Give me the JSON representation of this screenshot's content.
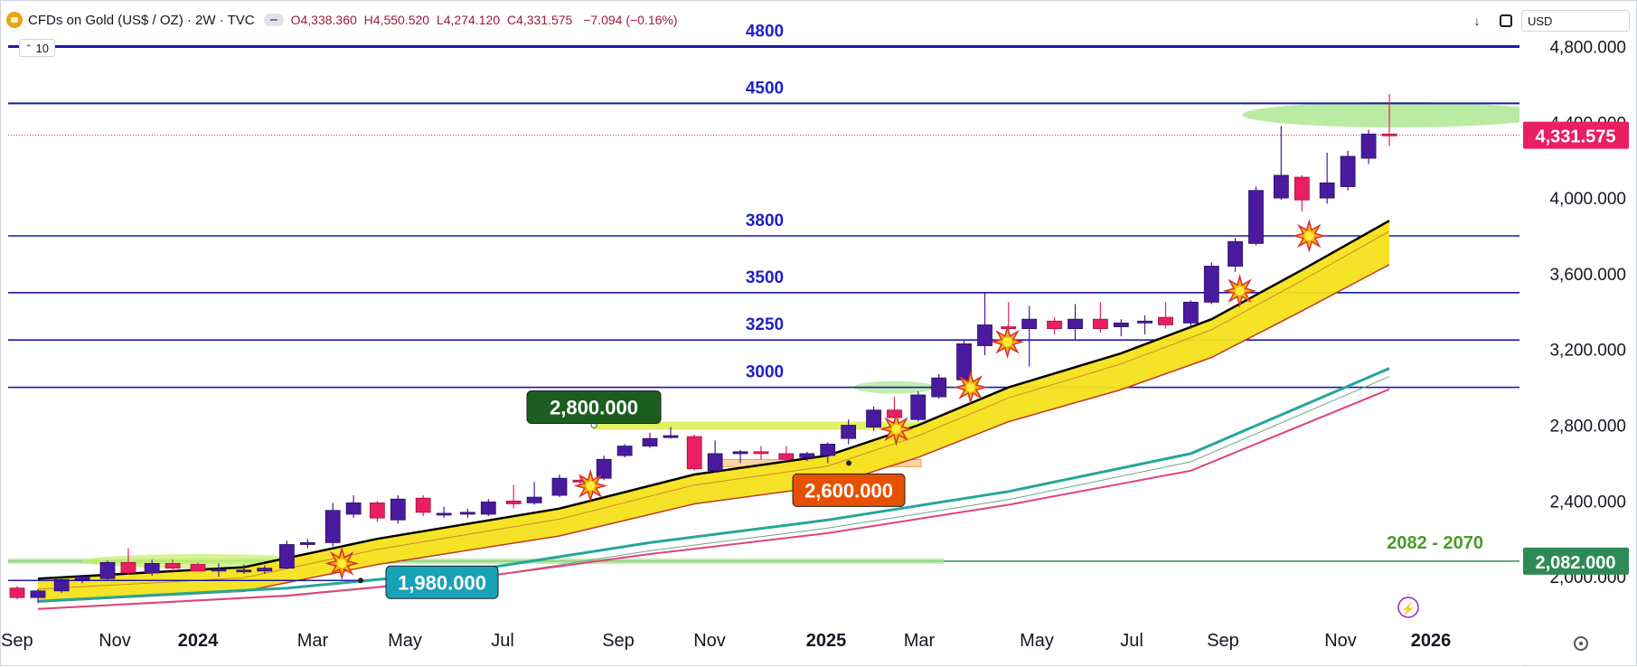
{
  "header": {
    "symbol_title": "CFDs on Gold (US$ / OZ) · 2W · TVC",
    "open": "O4,338.360",
    "high": "H4,550.520",
    "low": "L4,274.120",
    "close": "C4,331.575",
    "change": "−7.094 (−0.16%)",
    "indicator_count": "10",
    "currency": "USD"
  },
  "colors": {
    "bull_candle": "#4a1a9e",
    "bear_candle": "#e91e63",
    "level_line": "#1a1aa8",
    "level_text": "#2020c8",
    "price_tag": "#e91e63",
    "green_tag": "#2e8b57",
    "sma_band": "#f5e21b",
    "ma_teal": "#26a69a",
    "ma_pink": "#e0437b"
  },
  "chart_data": {
    "type": "candlestick",
    "title": "CFDs on Gold (US$ / OZ) · 2W · TVC",
    "x_axis_labels": [
      "Sep",
      "Nov",
      "2024",
      "Mar",
      "May",
      "Jul",
      "Sep",
      "Nov",
      "2025",
      "Mar",
      "May",
      "Jul",
      "Sep",
      "Nov",
      "2026"
    ],
    "y_axis_ticks": [
      "4,800.000",
      "4,400.000",
      "4,000.000",
      "3,600.000",
      "3,200.000",
      "2,800.000",
      "2,400.000",
      "2,000.000"
    ],
    "ylim": [
      1850,
      5220
    ],
    "last_price": "4,331.575",
    "horizontal_levels": [
      {
        "value": 4800,
        "label": "4800"
      },
      {
        "value": 4500,
        "label": "4500"
      },
      {
        "value": 3800,
        "label": "3800"
      },
      {
        "value": 3500,
        "label": "3500"
      },
      {
        "value": 3250,
        "label": "3250"
      },
      {
        "value": 3000,
        "label": "3000"
      }
    ],
    "zone_label": "2082 - 2070",
    "zone_tag": "2,082.000",
    "zone_value": 2082,
    "annotation_labels": [
      {
        "text": "2,800.000",
        "value": 2800,
        "date": "2024-08-16"
      },
      {
        "text": "2,600.000",
        "value": 2600,
        "date": "2025-01-05"
      },
      {
        "text": "1,980.000",
        "value": 1980,
        "date": "2024-04-20"
      }
    ],
    "candles": [
      {
        "date": "2023-09-01",
        "open": 1940,
        "high": 1950,
        "low": 1880,
        "close": 1890
      },
      {
        "date": "2023-09-15",
        "open": 1890,
        "high": 1935,
        "low": 1860,
        "close": 1925
      },
      {
        "date": "2023-10-01",
        "open": 1925,
        "high": 1995,
        "low": 1915,
        "close": 1985
      },
      {
        "date": "2023-10-15",
        "open": 1985,
        "high": 2010,
        "low": 1965,
        "close": 2000
      },
      {
        "date": "2023-11-01",
        "open": 1990,
        "high": 2085,
        "low": 1980,
        "close": 2075
      },
      {
        "date": "2023-11-15",
        "open": 2075,
        "high": 2150,
        "low": 2010,
        "close": 2020
      },
      {
        "date": "2023-12-01",
        "open": 2020,
        "high": 2090,
        "low": 2005,
        "close": 2070
      },
      {
        "date": "2023-12-15",
        "open": 2070,
        "high": 2090,
        "low": 2030,
        "close": 2045
      },
      {
        "date": "2024-01-01",
        "open": 2065,
        "high": 2075,
        "low": 2035,
        "close": 2030
      },
      {
        "date": "2024-01-15",
        "open": 2030,
        "high": 2070,
        "low": 2000,
        "close": 2040
      },
      {
        "date": "2024-02-01",
        "open": 2030,
        "high": 2065,
        "low": 2015,
        "close": 2035
      },
      {
        "date": "2024-02-15",
        "open": 2030,
        "high": 2060,
        "low": 2015,
        "close": 2045
      },
      {
        "date": "2024-03-01",
        "open": 2045,
        "high": 2190,
        "low": 2040,
        "close": 2170
      },
      {
        "date": "2024-03-15",
        "open": 2170,
        "high": 2200,
        "low": 2150,
        "close": 2180
      },
      {
        "date": "2024-04-01",
        "open": 2180,
        "high": 2390,
        "low": 2160,
        "close": 2350
      },
      {
        "date": "2024-04-15",
        "open": 2330,
        "high": 2430,
        "low": 2310,
        "close": 2390
      },
      {
        "date": "2024-05-01",
        "open": 2390,
        "high": 2400,
        "low": 2290,
        "close": 2310
      },
      {
        "date": "2024-05-15",
        "open": 2300,
        "high": 2430,
        "low": 2280,
        "close": 2410
      },
      {
        "date": "2024-06-01",
        "open": 2415,
        "high": 2430,
        "low": 2320,
        "close": 2340
      },
      {
        "date": "2024-06-15",
        "open": 2330,
        "high": 2370,
        "low": 2310,
        "close": 2335
      },
      {
        "date": "2024-07-01",
        "open": 2330,
        "high": 2360,
        "low": 2310,
        "close": 2340
      },
      {
        "date": "2024-07-15",
        "open": 2330,
        "high": 2410,
        "low": 2320,
        "close": 2395
      },
      {
        "date": "2024-08-01",
        "open": 2400,
        "high": 2485,
        "low": 2360,
        "close": 2385
      },
      {
        "date": "2024-08-15",
        "open": 2390,
        "high": 2500,
        "low": 2380,
        "close": 2420
      },
      {
        "date": "2024-09-01",
        "open": 2430,
        "high": 2540,
        "low": 2420,
        "close": 2520
      },
      {
        "date": "2024-09-15",
        "open": 2510,
        "high": 2530,
        "low": 2490,
        "close": 2500
      },
      {
        "date": "2024-10-01",
        "open": 2520,
        "high": 2640,
        "low": 2510,
        "close": 2620
      },
      {
        "date": "2024-10-15",
        "open": 2640,
        "high": 2700,
        "low": 2630,
        "close": 2690
      },
      {
        "date": "2024-11-01",
        "open": 2690,
        "high": 2760,
        "low": 2680,
        "close": 2730
      },
      {
        "date": "2024-11-15",
        "open": 2735,
        "high": 2790,
        "low": 2730,
        "close": 2745
      },
      {
        "date": "2024-12-01",
        "open": 2740,
        "high": 2750,
        "low": 2560,
        "close": 2570
      },
      {
        "date": "2024-12-15",
        "open": 2560,
        "high": 2720,
        "low": 2550,
        "close": 2650
      },
      {
        "date": "2025-01-01",
        "open": 2650,
        "high": 2670,
        "low": 2600,
        "close": 2660
      },
      {
        "date": "2025-01-15",
        "open": 2660,
        "high": 2690,
        "low": 2620,
        "close": 2650
      },
      {
        "date": "2025-02-01",
        "open": 2650,
        "high": 2690,
        "low": 2610,
        "close": 2620
      },
      {
        "date": "2025-02-15",
        "open": 2630,
        "high": 2660,
        "low": 2610,
        "close": 2650
      },
      {
        "date": "2025-03-01",
        "open": 2640,
        "high": 2710,
        "low": 2600,
        "close": 2700
      },
      {
        "date": "2025-03-15",
        "open": 2730,
        "high": 2830,
        "low": 2700,
        "close": 2800
      },
      {
        "date": "2025-04-01",
        "open": 2790,
        "high": 2900,
        "low": 2770,
        "close": 2880
      },
      {
        "date": "2025-04-15",
        "open": 2880,
        "high": 2950,
        "low": 2840,
        "close": 2840
      },
      {
        "date": "2025-05-01",
        "open": 2830,
        "high": 2980,
        "low": 2820,
        "close": 2960
      },
      {
        "date": "2025-05-15",
        "open": 2950,
        "high": 3070,
        "low": 2940,
        "close": 3050
      },
      {
        "date": "2025-06-01",
        "open": 3040,
        "high": 3250,
        "low": 3020,
        "close": 3230
      },
      {
        "date": "2025-06-15",
        "open": 3220,
        "high": 3500,
        "low": 3170,
        "close": 3330
      },
      {
        "date": "2025-07-01",
        "open": 3320,
        "high": 3450,
        "low": 3200,
        "close": 3310
      },
      {
        "date": "2025-07-15",
        "open": 3310,
        "high": 3430,
        "low": 3110,
        "close": 3360
      },
      {
        "date": "2025-08-01",
        "open": 3350,
        "high": 3370,
        "low": 3280,
        "close": 3310
      },
      {
        "date": "2025-08-15",
        "open": 3310,
        "high": 3440,
        "low": 3250,
        "close": 3360
      },
      {
        "date": "2025-09-01",
        "open": 3360,
        "high": 3450,
        "low": 3290,
        "close": 3310
      },
      {
        "date": "2025-09-15",
        "open": 3320,
        "high": 3360,
        "low": 3270,
        "close": 3340
      },
      {
        "date": "2025-10-01",
        "open": 3340,
        "high": 3380,
        "low": 3280,
        "close": 3350
      },
      {
        "date": "2025-10-15",
        "open": 3370,
        "high": 3450,
        "low": 3310,
        "close": 3330
      },
      {
        "date": "2025-11-01",
        "open": 3340,
        "high": 3460,
        "low": 3310,
        "close": 3450
      },
      {
        "date": "2025-11-15",
        "open": 3450,
        "high": 3660,
        "low": 3440,
        "close": 3640
      },
      {
        "date": "2025-12-01",
        "open": 3640,
        "high": 3790,
        "low": 3610,
        "close": 3770
      },
      {
        "date": "2025-12-15",
        "open": 3760,
        "high": 4060,
        "low": 3750,
        "close": 4040
      },
      {
        "date": "2026-01-01",
        "open": 4000,
        "high": 4380,
        "low": 3990,
        "close": 4120
      },
      {
        "date": "2026-01-15",
        "open": 4110,
        "high": 4120,
        "low": 3930,
        "close": 3990
      },
      {
        "date": "2026-02-01",
        "open": 4000,
        "high": 4240,
        "low": 3970,
        "close": 4080
      },
      {
        "date": "2026-02-15",
        "open": 4060,
        "high": 4250,
        "low": 4040,
        "close": 4220
      },
      {
        "date": "2026-03-01",
        "open": 4210,
        "high": 4360,
        "low": 4180,
        "close": 4338
      },
      {
        "date": "2026-03-15",
        "open": 4338,
        "high": 4550,
        "low": 4274,
        "close": 4331
      }
    ],
    "moving_averages": [
      {
        "name": "ema-black",
        "points": [
          {
            "date": "2023-09-15",
            "value": 1990
          },
          {
            "date": "2024-02-01",
            "value": 2050
          },
          {
            "date": "2024-05-01",
            "value": 2200
          },
          {
            "date": "2024-09-01",
            "value": 2360
          },
          {
            "date": "2024-12-01",
            "value": 2540
          },
          {
            "date": "2025-03-01",
            "value": 2640
          },
          {
            "date": "2025-05-01",
            "value": 2800
          },
          {
            "date": "2025-07-01",
            "value": 3000
          },
          {
            "date": "2025-09-15",
            "value": 3180
          },
          {
            "date": "2025-11-15",
            "value": 3360
          },
          {
            "date": "2026-01-15",
            "value": 3620
          },
          {
            "date": "2026-03-15",
            "value": 3880
          }
        ]
      },
      {
        "name": "ma-teal",
        "points": [
          {
            "date": "2023-09-15",
            "value": 1870
          },
          {
            "date": "2024-03-01",
            "value": 1940
          },
          {
            "date": "2024-07-01",
            "value": 2030
          },
          {
            "date": "2024-11-01",
            "value": 2180
          },
          {
            "date": "2025-03-01",
            "value": 2300
          },
          {
            "date": "2025-07-01",
            "value": 2450
          },
          {
            "date": "2025-11-01",
            "value": 2650
          },
          {
            "date": "2026-03-15",
            "value": 3100
          }
        ]
      },
      {
        "name": "ma-pink",
        "points": [
          {
            "date": "2023-09-15",
            "value": 1830
          },
          {
            "date": "2024-03-01",
            "value": 1900
          },
          {
            "date": "2024-07-01",
            "value": 1990
          },
          {
            "date": "2024-11-01",
            "value": 2120
          },
          {
            "date": "2025-03-01",
            "value": 2230
          },
          {
            "date": "2025-07-01",
            "value": 2380
          },
          {
            "date": "2025-11-01",
            "value": 2560
          },
          {
            "date": "2026-03-15",
            "value": 2990
          }
        ]
      }
    ]
  }
}
